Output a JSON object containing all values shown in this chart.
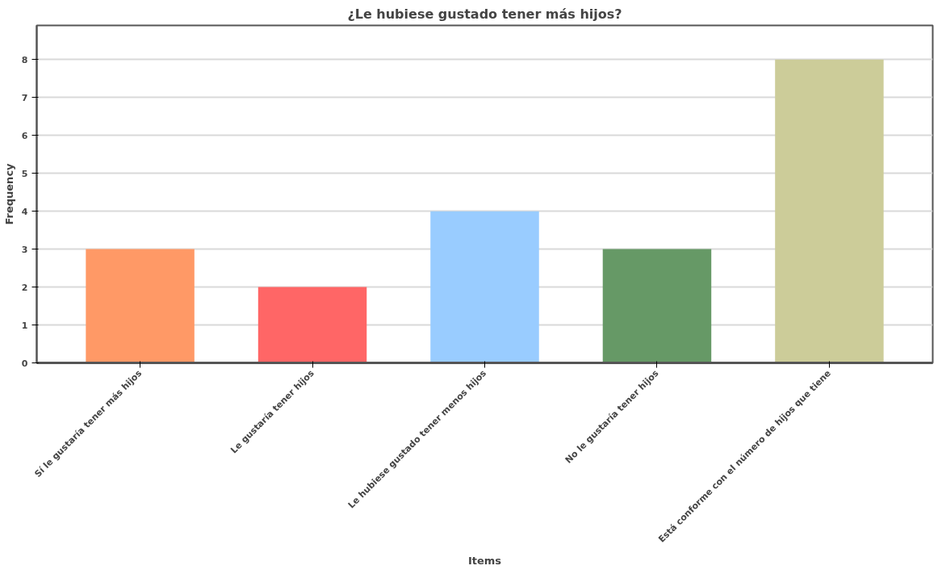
{
  "chart_data": {
    "type": "bar",
    "title": "¿Le hubiese gustado tener más hijos?",
    "xlabel": "Items",
    "ylabel": "Frequency",
    "categories": [
      "Sí le gustaría tener más hijos",
      "Le gustaría tener hijos",
      "Le hubiese gustado tener menos hijos",
      "No le gustaría tener hijos",
      "Está conforme con el número de hijos que tiene"
    ],
    "values": [
      3,
      2,
      4,
      3,
      8
    ],
    "colors": [
      "#ff9966",
      "#ff6666",
      "#99ccff",
      "#669966",
      "#cccc99"
    ],
    "ylim": [
      0,
      8.9
    ],
    "yticks": [
      0,
      1,
      2,
      3,
      4,
      5,
      6,
      7,
      8
    ],
    "grid": "y"
  }
}
